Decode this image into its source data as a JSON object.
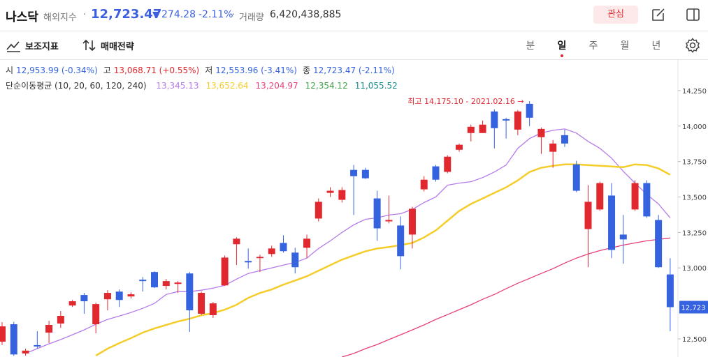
{
  "header": {
    "title": "나스닥",
    "market": "해외지수",
    "price": "12,723.47",
    "change_arrow": "▼",
    "change": "274.28",
    "change_pct": "-2.11%",
    "volume_label": "거래량",
    "volume": "6,420,438,885",
    "watch_button": "관심"
  },
  "toolbar": {
    "indicators": "보조지표",
    "strategy": "매매전략",
    "periods": [
      "분",
      "일",
      "주",
      "월",
      "년"
    ],
    "active_period": "일"
  },
  "ohlc_legend": [
    {
      "label": "시",
      "value": "12,953.99 (-0.34%)"
    },
    {
      "label": "고",
      "value": "13,068.71 (+0.55%)"
    },
    {
      "label": "저",
      "value": "12,553.96 (-3.41%)"
    },
    {
      "label": "종",
      "value": "12,723.47 (-2.11%)"
    }
  ],
  "chart_data": {
    "type": "candlestick",
    "open": [
      12480,
      12603,
      12397,
      12456,
      12544,
      12608,
      12735,
      12809,
      12603,
      12779,
      12833,
      12799,
      12917,
      12971,
      12873,
      12887,
      12961,
      12677,
      12667,
      12877,
      13167,
      13049,
      13069,
      13098,
      13176,
      13108,
      13142,
      13348,
      13529,
      13480,
      13691,
      13691,
      13490,
      13328,
      13299,
      13235,
      13554,
      13716,
      13677,
      13833,
      13951,
      13951,
      14103,
      14049,
      13975,
      14157,
      13922,
      13819,
      13936,
      13730,
      13274,
      13412,
      13510,
      13235,
      13412,
      13598,
      13338,
      12953.99
    ],
    "high": [
      12618,
      12620,
      12431,
      12554,
      12627,
      12696,
      12774,
      12824,
      12755,
      12843,
      12848,
      12828,
      12936,
      12976,
      12922,
      12907,
      12971,
      12833,
      12760,
      13088,
      13216,
      13137,
      13093,
      13157,
      13230,
      13142,
      13235,
      13490,
      13569,
      13569,
      13726,
      13706,
      13544,
      13510,
      13363,
      13431,
      13647,
      13726,
      13794,
      13877,
      14010,
      14039,
      14118,
      14059,
      14113,
      14175.1,
      13990,
      13902,
      13975,
      13755,
      13583,
      13608,
      13598,
      13373,
      13618,
      13618,
      13373,
      13068.71
    ],
    "low": [
      12456,
      12380,
      12382,
      12431,
      12471,
      12578,
      12725,
      12677,
      12539,
      12701,
      12725,
      12784,
      12833,
      12858,
      12848,
      12824,
      12549,
      12667,
      12647,
      12873,
      13020,
      12995,
      12971,
      13078,
      13108,
      12961,
      13069,
      13328,
      13500,
      13461,
      13373,
      13627,
      13191,
      13314,
      12990,
      13137,
      13539,
      13608,
      13667,
      13819,
      13892,
      13951,
      13843,
      13912,
      13936,
      14000,
      13804,
      13706,
      13853,
      13534,
      13005,
      13402,
      13069,
      13029,
      13402,
      13353,
      13000,
      12553.96
    ],
    "close": [
      12588,
      12390,
      12417,
      12446,
      12598,
      12662,
      12765,
      12765,
      12745,
      12824,
      12774,
      12814,
      12907,
      12863,
      12907,
      12897,
      12701,
      12824,
      12750,
      13073,
      13206,
      13039,
      13078,
      13137,
      13118,
      13005,
      13206,
      13466,
      13544,
      13549,
      13647,
      13632,
      13279,
      13338,
      13083,
      13417,
      13622,
      13622,
      13784,
      13868,
      13995,
      14010,
      13985,
      14039,
      14103,
      14059,
      13980,
      13877,
      13877,
      13544,
      13466,
      13598,
      13127,
      13201,
      13598,
      13363,
      13005,
      12723.47
    ],
    "up_color": "#e0282e",
    "down_color": "#3563e0",
    "ylim": [
      12372,
      14466
    ],
    "yticks": [
      {
        "value": 12500,
        "label": "12,500"
      },
      {
        "value": 13000,
        "label": "13,000"
      },
      {
        "value": 13250,
        "label": "13,250"
      },
      {
        "value": 13500,
        "label": "13,500"
      },
      {
        "value": 13750,
        "label": "13,750"
      },
      {
        "value": 14000,
        "label": "14,000"
      },
      {
        "value": 14250,
        "label": "14,250"
      }
    ],
    "ma_legend": "단순이동평균 (10, 20, 60, 120, 240)",
    "series": [
      {
        "value_label": "13,345.13",
        "color": "#b57bea",
        "values": [
          null,
          null,
          12397,
          12431,
          12465,
          12495,
          12529,
          12563,
          12603,
          12637,
          12661,
          12686,
          12715,
          12750,
          12813,
          12833,
          12833,
          12843,
          12857,
          12877,
          12921,
          12961,
          12980,
          13000,
          13020,
          13039,
          13069,
          13137,
          13191,
          13250,
          13304,
          13343,
          13353,
          13373,
          13382,
          13412,
          13461,
          13500,
          13583,
          13598,
          13608,
          13637,
          13676,
          13725,
          13843,
          13912,
          13951,
          13970,
          13980,
          13951,
          13892,
          13843,
          13774,
          13681,
          13598,
          13519,
          13451,
          13353
        ]
      },
      {
        "value_label": "13,652.64",
        "color": "#f5cd2a",
        "values": [
          null,
          null,
          null,
          null,
          null,
          null,
          null,
          null,
          12382,
          12431,
          12470,
          12505,
          12544,
          12573,
          12598,
          12622,
          12642,
          12666,
          12681,
          12706,
          12740,
          12789,
          12823,
          12848,
          12882,
          12911,
          12941,
          12980,
          13020,
          13058,
          13088,
          13117,
          13137,
          13147,
          13161,
          13176,
          13215,
          13264,
          13333,
          13402,
          13451,
          13490,
          13529,
          13568,
          13617,
          13676,
          13706,
          13720,
          13730,
          13730,
          13725,
          13720,
          13715,
          13710,
          13730,
          13725,
          13701,
          13657
        ]
      },
      {
        "value_label": "13,204.97",
        "color": "#e8407a",
        "values": [
          null,
          null,
          null,
          null,
          null,
          null,
          null,
          null,
          null,
          null,
          null,
          null,
          null,
          null,
          null,
          null,
          null,
          null,
          null,
          null,
          null,
          null,
          null,
          null,
          null,
          null,
          null,
          null,
          null,
          12372,
          12397,
          12431,
          12460,
          12495,
          12529,
          12563,
          12598,
          12637,
          12671,
          12706,
          12740,
          12779,
          12813,
          12853,
          12892,
          12926,
          12961,
          12995,
          13034,
          13069,
          13098,
          13122,
          13142,
          13161,
          13176,
          13191,
          13201,
          13211
        ]
      },
      {
        "value_label": "12,354.12",
        "color": "#43a047"
      },
      {
        "value_label": "11,055.52",
        "color": "#138a8a"
      }
    ],
    "annotation": "최고 14,175.10 - 2021.02.16 →",
    "last_price_tag": {
      "value": 12723.47,
      "label": "12,723"
    }
  }
}
